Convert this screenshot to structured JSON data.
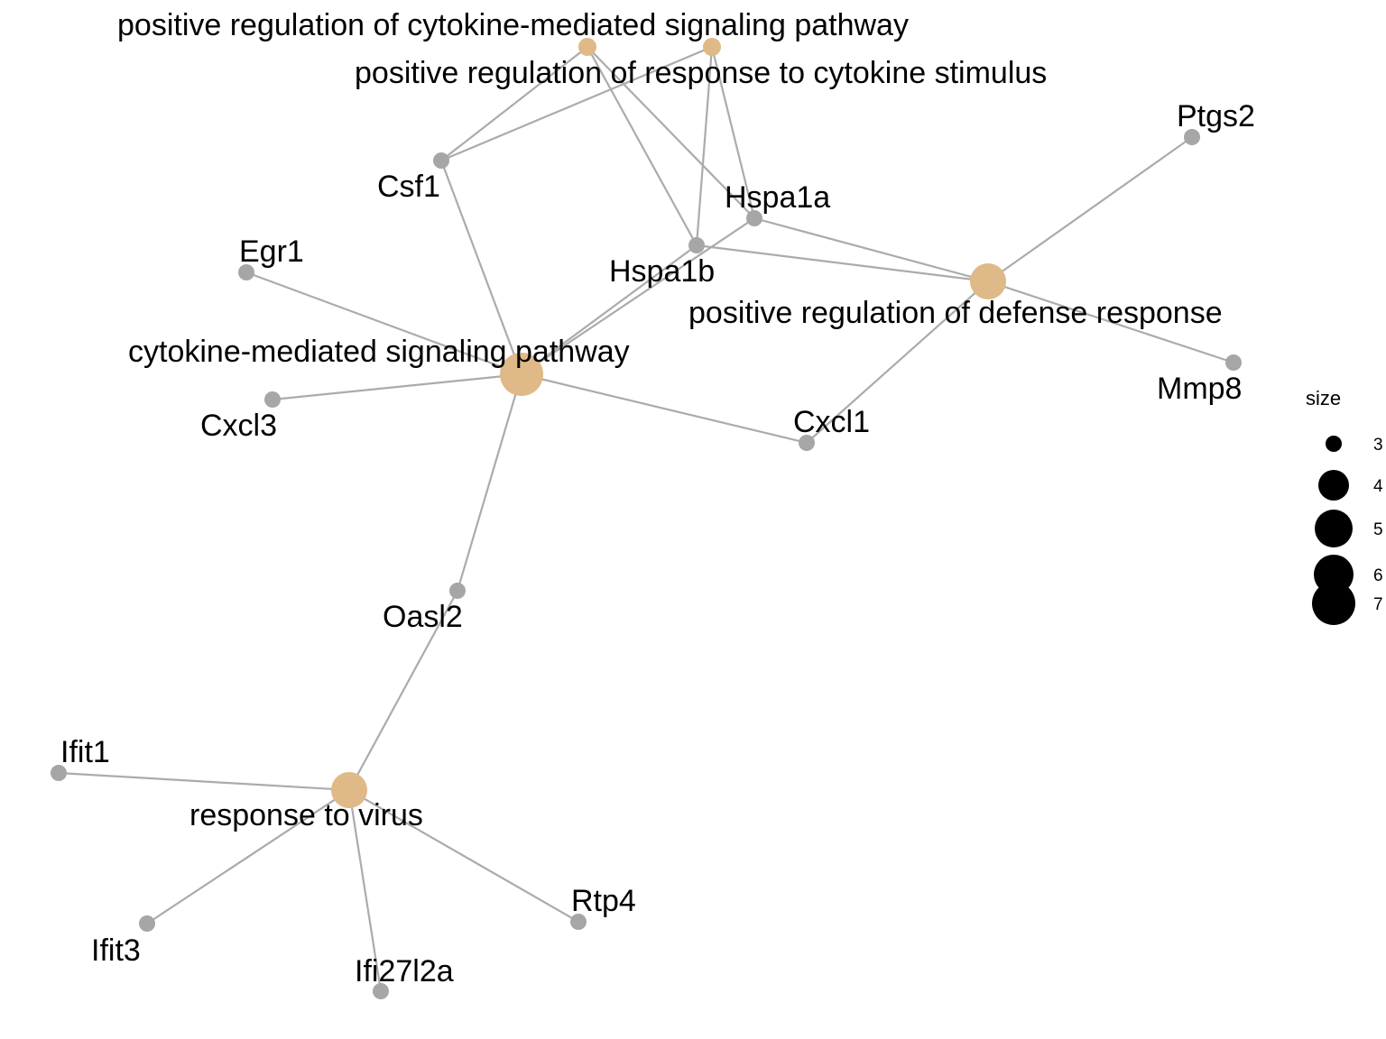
{
  "colors": {
    "edge": "#ababab",
    "gene": "#a6a6a6",
    "term": "#dfb987",
    "legend": "#000000"
  },
  "nodes": [
    {
      "id": "posreg-cytokine-signaling",
      "label": "positive regulation of cytokine-mediated signaling pathway",
      "kind": "term"
    },
    {
      "id": "posreg-response-cytokine",
      "label": "positive regulation of response to cytokine stimulus",
      "kind": "term"
    },
    {
      "id": "posreg-defense",
      "label": "positive regulation of defense response",
      "kind": "term"
    },
    {
      "id": "cytokine-signaling",
      "label": "cytokine-mediated signaling pathway",
      "kind": "term"
    },
    {
      "id": "response-virus",
      "label": "response to virus",
      "kind": "term"
    },
    {
      "id": "Csf1",
      "label": "Csf1",
      "kind": "gene"
    },
    {
      "id": "Hspa1a",
      "label": "Hspa1a",
      "kind": "gene"
    },
    {
      "id": "Hspa1b",
      "label": "Hspa1b",
      "kind": "gene"
    },
    {
      "id": "Ptgs2",
      "label": "Ptgs2",
      "kind": "gene"
    },
    {
      "id": "Mmp8",
      "label": "Mmp8",
      "kind": "gene"
    },
    {
      "id": "Egr1",
      "label": "Egr1",
      "kind": "gene"
    },
    {
      "id": "Cxcl3",
      "label": "Cxcl3",
      "kind": "gene"
    },
    {
      "id": "Cxcl1",
      "label": "Cxcl1",
      "kind": "gene"
    },
    {
      "id": "Oasl2",
      "label": "Oasl2",
      "kind": "gene"
    },
    {
      "id": "Ifit1",
      "label": "Ifit1",
      "kind": "gene"
    },
    {
      "id": "Ifit3",
      "label": "Ifit3",
      "kind": "gene"
    },
    {
      "id": "Ifi27l2a",
      "label": "Ifi27l2a",
      "kind": "gene"
    },
    {
      "id": "Rtp4",
      "label": "Rtp4",
      "kind": "gene"
    }
  ],
  "edges": [
    [
      "posreg-cytokine-signaling",
      "Csf1"
    ],
    [
      "posreg-cytokine-signaling",
      "Hspa1a"
    ],
    [
      "posreg-cytokine-signaling",
      "Hspa1b"
    ],
    [
      "posreg-response-cytokine",
      "Csf1"
    ],
    [
      "posreg-response-cytokine",
      "Hspa1a"
    ],
    [
      "posreg-response-cytokine",
      "Hspa1b"
    ],
    [
      "posreg-defense",
      "Hspa1a"
    ],
    [
      "posreg-defense",
      "Hspa1b"
    ],
    [
      "posreg-defense",
      "Ptgs2"
    ],
    [
      "posreg-defense",
      "Mmp8"
    ],
    [
      "posreg-defense",
      "Cxcl1"
    ],
    [
      "cytokine-signaling",
      "Csf1"
    ],
    [
      "cytokine-signaling",
      "Hspa1a"
    ],
    [
      "cytokine-signaling",
      "Hspa1b"
    ],
    [
      "cytokine-signaling",
      "Egr1"
    ],
    [
      "cytokine-signaling",
      "Cxcl3"
    ],
    [
      "cytokine-signaling",
      "Cxcl1"
    ],
    [
      "cytokine-signaling",
      "Oasl2"
    ],
    [
      "response-virus",
      "Oasl2"
    ],
    [
      "response-virus",
      "Ifit1"
    ],
    [
      "response-virus",
      "Ifit3"
    ],
    [
      "response-virus",
      "Ifi27l2a"
    ],
    [
      "response-virus",
      "Rtp4"
    ]
  ],
  "legend": {
    "title": "size",
    "items": [
      "3",
      "4",
      "5",
      "6",
      "7"
    ]
  }
}
